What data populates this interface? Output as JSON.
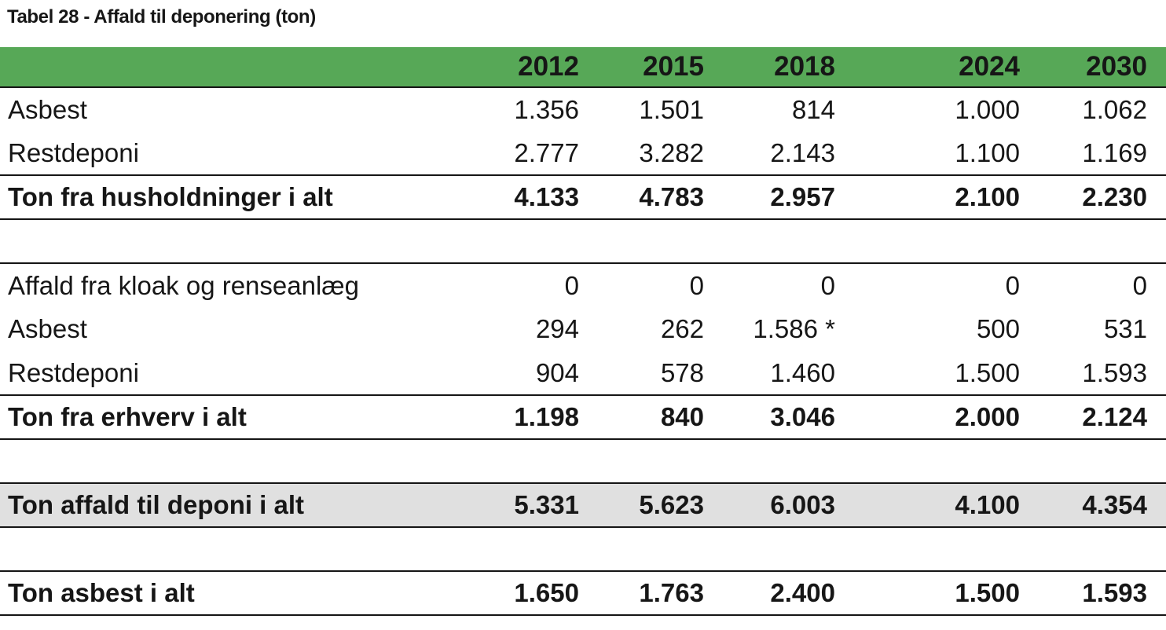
{
  "title": "Tabel 28 - Affald til deponering (ton)",
  "colors": {
    "header_green": "#57A857",
    "grand_total_gray": "#E0E0E0",
    "rule_black": "#151515"
  },
  "table": {
    "columns": [
      "",
      "2012",
      "2015",
      "2018",
      "2024",
      "2030"
    ],
    "rows": [
      {
        "type": "data",
        "label": "Asbest",
        "values": [
          "1.356",
          "1.501",
          "814",
          "1.000",
          "1.062"
        ]
      },
      {
        "type": "data",
        "label": "Restdeponi",
        "values": [
          "2.777",
          "3.282",
          "2.143",
          "1.100",
          "1.169"
        ]
      },
      {
        "type": "total",
        "label": "Ton fra husholdninger i alt",
        "values": [
          "4.133",
          "4.783",
          "2.957",
          "2.100",
          "2.230"
        ]
      },
      {
        "type": "spacer"
      },
      {
        "type": "data",
        "label": "Affald fra kloak og renseanlæg",
        "values": [
          "0",
          "0",
          "0",
          "0",
          "0"
        ],
        "section_start": true
      },
      {
        "type": "data",
        "label": "Asbest",
        "values": [
          "294",
          "262",
          "1.586 *",
          "500",
          "531"
        ]
      },
      {
        "type": "data",
        "label": "Restdeponi",
        "values": [
          "904",
          "578",
          "1.460",
          "1.500",
          "1.593"
        ]
      },
      {
        "type": "total",
        "label": "Ton fra erhverv i alt",
        "values": [
          "1.198",
          "840",
          "3.046",
          "2.000",
          "2.124"
        ]
      },
      {
        "type": "spacer"
      },
      {
        "type": "grand_total",
        "label": "Ton affald til deponi i alt",
        "values": [
          "5.331",
          "5.623",
          "6.003",
          "4.100",
          "4.354"
        ]
      },
      {
        "type": "spacer"
      },
      {
        "type": "total",
        "label": "Ton asbest i alt",
        "values": [
          "1.650",
          "1.763",
          "2.400",
          "1.500",
          "1.593"
        ]
      }
    ],
    "footnote_marker": "*"
  }
}
